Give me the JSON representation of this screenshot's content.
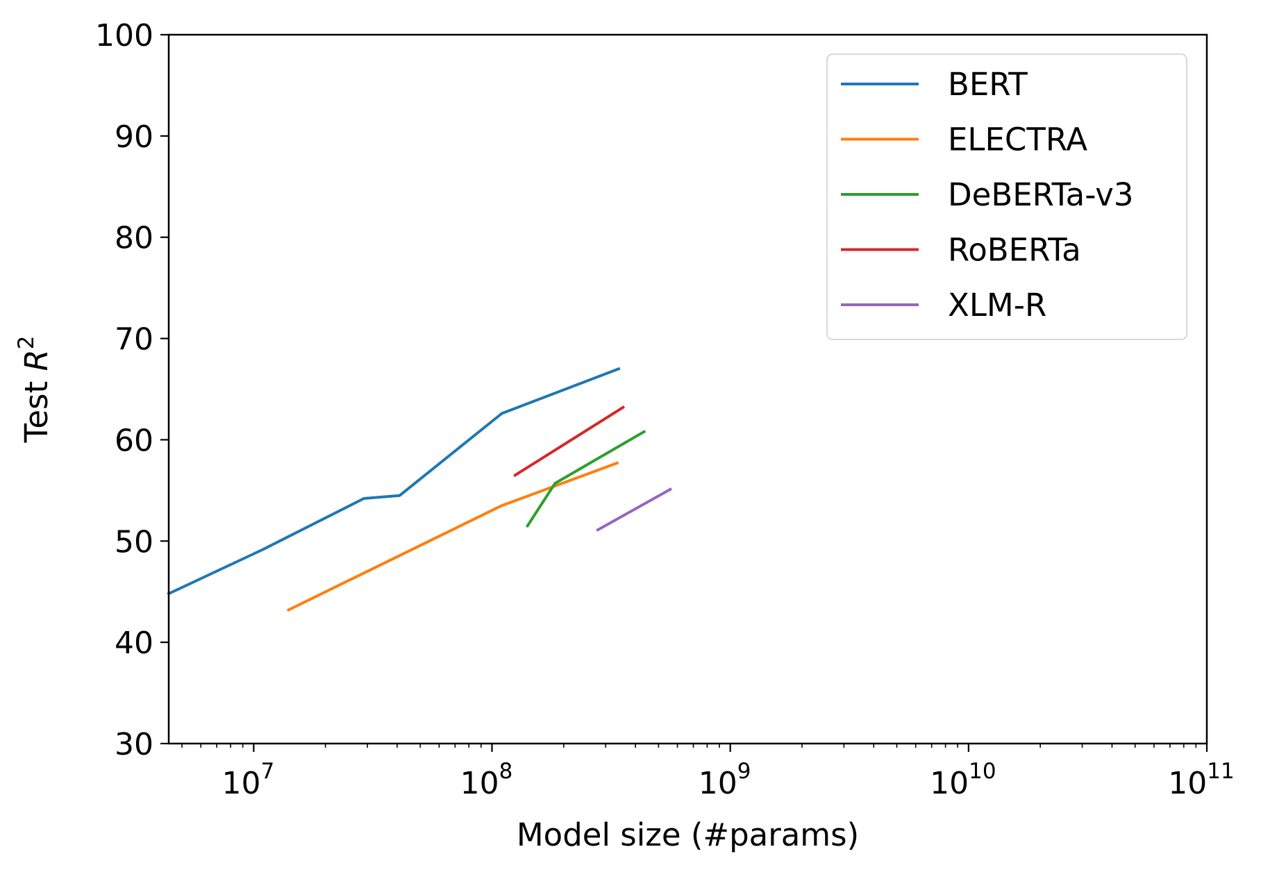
{
  "chart_data": {
    "type": "line",
    "title": "",
    "xlabel": "Model size (#params)",
    "ylabel": "Test ",
    "ylabel_math": "R",
    "ylabel_sup": "2",
    "xscale": "log",
    "xlim": [
      4400000,
      100000000000
    ],
    "ylim": [
      30,
      100
    ],
    "yticks": [
      30,
      40,
      50,
      60,
      70,
      80,
      90,
      100
    ],
    "xticks": [
      {
        "value": 10000000,
        "base": "10",
        "exp": "7"
      },
      {
        "value": 100000000,
        "base": "10",
        "exp": "8"
      },
      {
        "value": 1000000000,
        "base": "10",
        "exp": "9"
      },
      {
        "value": 10000000000,
        "base": "10",
        "exp": "10"
      },
      {
        "value": 100000000000,
        "base": "10",
        "exp": "11"
      }
    ],
    "legend_position": "top-right",
    "grid": false,
    "series": [
      {
        "name": "BERT",
        "color": "#1f77b4",
        "x": [
          4400000,
          11000000,
          29000000,
          41000000,
          110000000,
          340000000
        ],
        "y": [
          44.8,
          49.2,
          54.2,
          54.5,
          62.6,
          67.0
        ]
      },
      {
        "name": "ELECTRA",
        "color": "#ff7f0e",
        "x": [
          14000000,
          110000000,
          335000000
        ],
        "y": [
          43.2,
          53.5,
          57.7
        ]
      },
      {
        "name": "DeBERTa-v3",
        "color": "#2ca02c",
        "x": [
          141000000,
          184000000,
          435000000
        ],
        "y": [
          51.5,
          55.7,
          60.8
        ]
      },
      {
        "name": "RoBERTa",
        "color": "#d62728",
        "x": [
          125000000,
          355000000
        ],
        "y": [
          56.5,
          63.2
        ]
      },
      {
        "name": "XLM-R",
        "color": "#9467bd",
        "x": [
          278000000,
          560000000
        ],
        "y": [
          51.1,
          55.1
        ]
      }
    ]
  }
}
